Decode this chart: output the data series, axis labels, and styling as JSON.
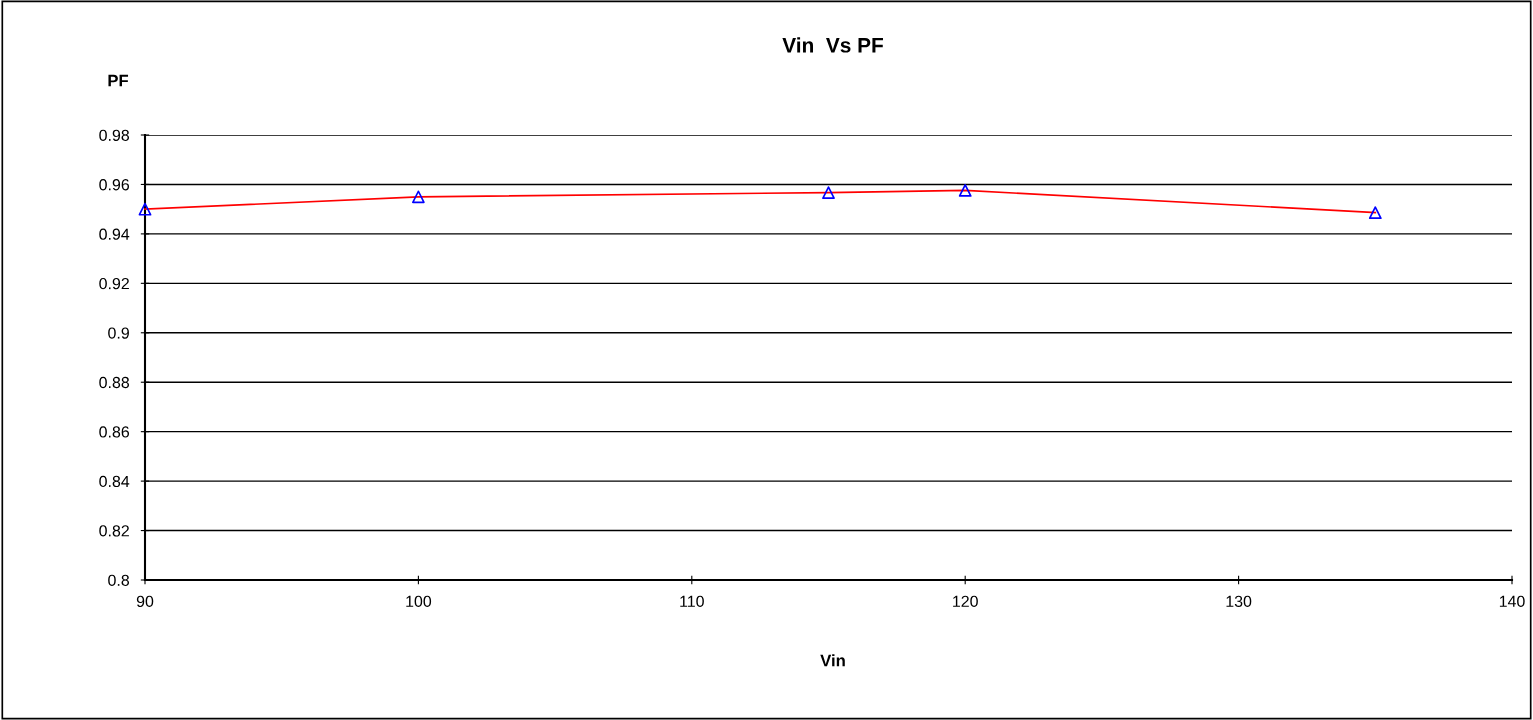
{
  "chart_data": {
    "type": "line",
    "title": "Vin  Vs PF",
    "xlabel": "Vin",
    "ylabel": "PF",
    "x": [
      90,
      100,
      115,
      120,
      135
    ],
    "series": [
      {
        "color": "#ff0000",
        "colors": [
          "#0000ff",
          "#0000ff",
          "#0000ff",
          "#0000ff",
          "#0000ff"
        ],
        "values": [
          0.95,
          0.955,
          0.9567,
          0.9576,
          0.9486
        ]
      }
    ],
    "xlim": [
      90,
      140
    ],
    "xticks": [
      90,
      100,
      110,
      120,
      130,
      140
    ],
    "ylim": [
      0.8,
      0.98
    ],
    "yticks": [
      0.8,
      0.82,
      0.84,
      0.86,
      0.88,
      0.9,
      0.92,
      0.94,
      0.96,
      0.98
    ],
    "grid": "y",
    "marker": "triangle",
    "line_style": "solid"
  }
}
